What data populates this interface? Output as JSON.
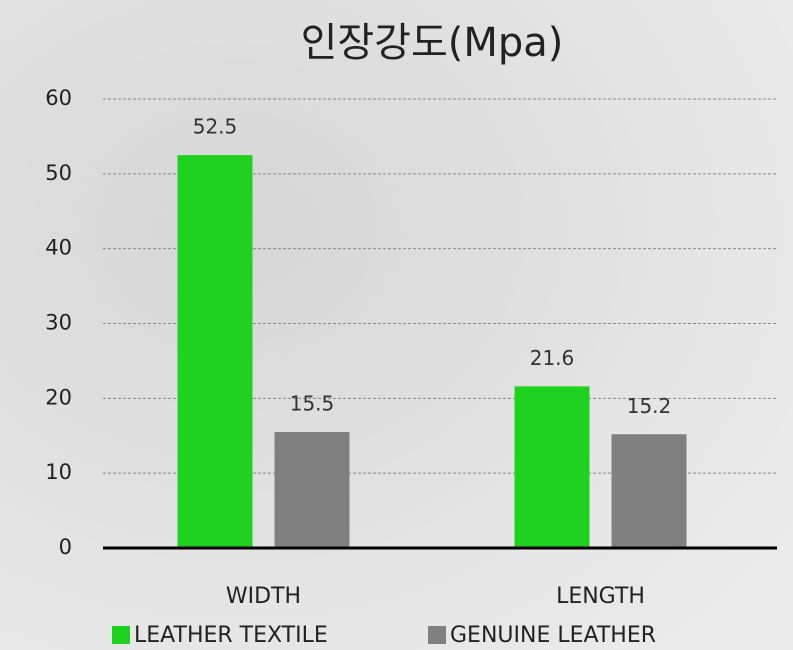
{
  "chart_data": {
    "type": "bar",
    "title": "인장강도(Mpa)",
    "categories": [
      "WIDTH",
      "LENGTH"
    ],
    "series": [
      {
        "name": "LEATHER TEXTILE",
        "color": "#1fd21f",
        "values": [
          52.5,
          21.6
        ]
      },
      {
        "name": "GENUINE LEATHER",
        "color": "#808080",
        "values": [
          15.5,
          15.2
        ]
      }
    ],
    "ylim": [
      0,
      60
    ],
    "yticks": [
      0,
      10,
      20,
      30,
      40,
      50,
      60
    ],
    "grid": true,
    "legend": "bottom"
  }
}
